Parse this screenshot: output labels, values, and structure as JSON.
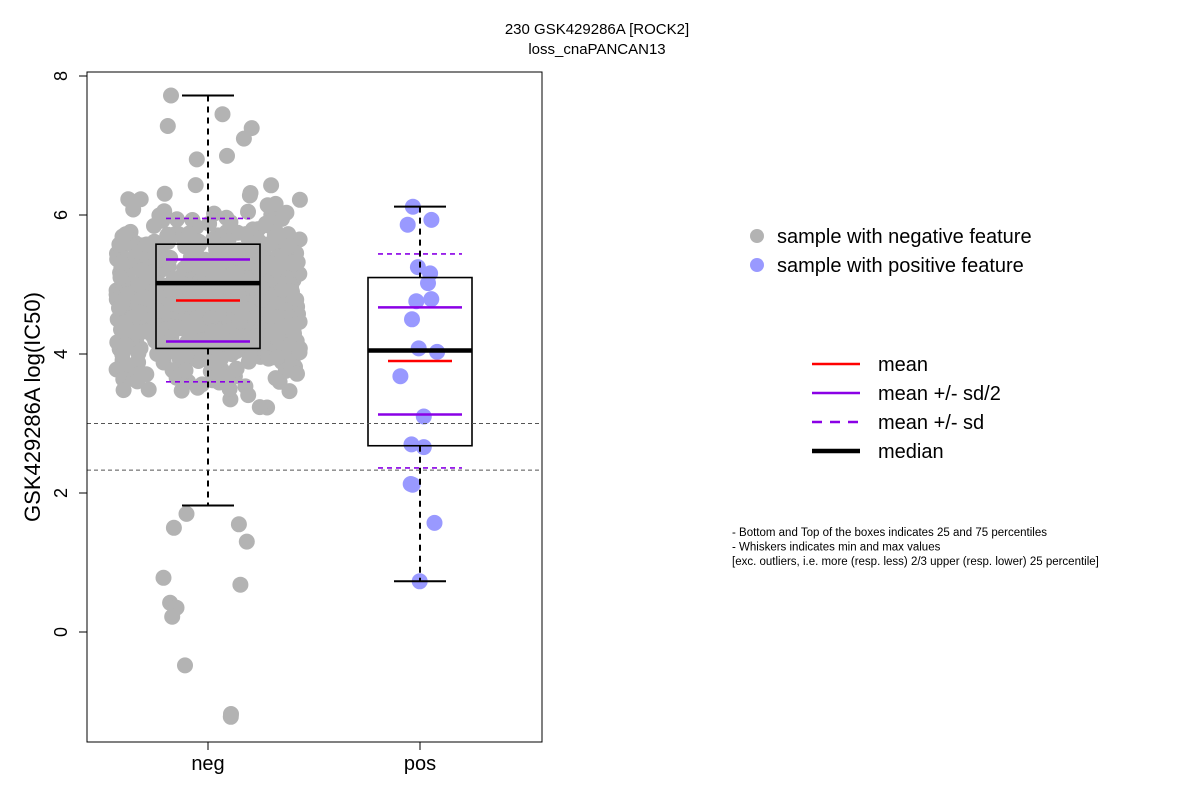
{
  "chart_data": {
    "type": "box",
    "title": "230 GSK429286A [ROCK2]",
    "subtitle": "loss_cnaPANCAN13",
    "ylabel": "GSK429286A log(IC50)",
    "xlabel": "",
    "categories": [
      "neg",
      "pos"
    ],
    "ylim": [
      -1.6,
      8.1
    ],
    "yticks": [
      0,
      2,
      4,
      6,
      8
    ],
    "reference_lines": [
      3.0,
      2.33
    ],
    "groups": [
      {
        "name": "neg",
        "point_color": "#b3b3b3",
        "whisker_min": 1.82,
        "q1": 4.08,
        "median": 5.02,
        "q3": 5.58,
        "whisker_max": 7.72,
        "mean": 4.77,
        "mean_minus_half_sd": 4.18,
        "mean_plus_half_sd": 5.36,
        "mean_minus_sd": 3.6,
        "mean_plus_sd": 5.95,
        "outliers": [
          1.3,
          1.5,
          1.55,
          1.7,
          0.78,
          0.68,
          0.42,
          0.35,
          0.22,
          -0.48,
          -1.18,
          -1.22
        ]
      },
      {
        "name": "pos",
        "point_color": "#9999ff",
        "whisker_min": 0.73,
        "q1": 2.68,
        "median": 4.05,
        "q3": 5.1,
        "whisker_max": 6.12,
        "mean": 3.9,
        "mean_minus_half_sd": 3.13,
        "mean_plus_half_sd": 4.67,
        "mean_minus_sd": 2.36,
        "mean_plus_sd": 5.44,
        "points": [
          6.12,
          5.93,
          5.86,
          5.25,
          5.16,
          5.02,
          4.79,
          4.76,
          4.5,
          4.08,
          4.03,
          3.68,
          3.1,
          2.7,
          2.66,
          2.13,
          2.12,
          1.57,
          0.73
        ]
      }
    ],
    "legend_points": [
      {
        "label": "sample with negative feature",
        "color": "#b3b3b3"
      },
      {
        "label": "sample with positive feature",
        "color": "#9999ff"
      }
    ],
    "legend_lines": [
      {
        "label": "mean",
        "color": "#ff0000",
        "style": "solid"
      },
      {
        "label": "mean +/- sd/2",
        "color": "#8a00e6",
        "style": "solid"
      },
      {
        "label": "mean +/- sd",
        "color": "#8a00e6",
        "style": "dashed"
      },
      {
        "label": "median",
        "color": "#000000",
        "style": "solid-bold"
      }
    ],
    "notes": [
      "- Bottom and Top of the boxes indicates 25 and 75 percentiles",
      "- Whiskers indicates min and max values",
      "[exc. outliers, i.e. more (resp. less) 2/3 upper (resp. lower) 25 percentile]"
    ]
  }
}
